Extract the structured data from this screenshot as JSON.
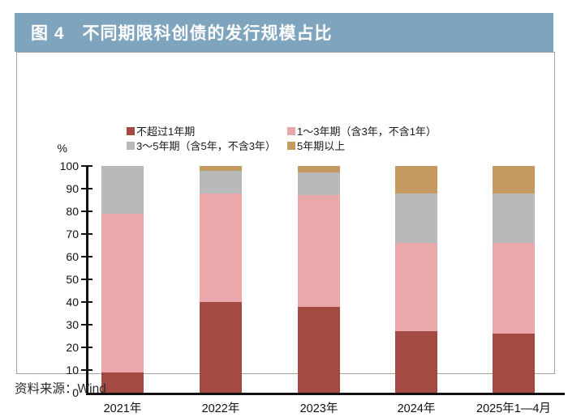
{
  "figure": {
    "title": "图 4　不同期限科创债的发行规模占比",
    "source": "资料来源：Wind"
  },
  "colors": {
    "header_bg": "#7fa4bd",
    "header_text": "#ffffff",
    "axis": "#111111",
    "panel_border": "#a3a3a3"
  },
  "chart_data": {
    "type": "bar",
    "stacked": true,
    "unit": "%",
    "title": "不同期限科创债的发行规模占比",
    "xlabel": "",
    "ylabel": "%",
    "ylim": [
      0,
      100
    ],
    "yticks": [
      0,
      10,
      20,
      30,
      40,
      50,
      60,
      70,
      80,
      90,
      100
    ],
    "grid": false,
    "legend_position": "top",
    "categories": [
      "2021年",
      "2022年",
      "2023年",
      "2024年",
      "2025年1—4月"
    ],
    "series": [
      {
        "name": "不超过1年期",
        "color": "#a34b42",
        "values": [
          9,
          40,
          38,
          27,
          26
        ]
      },
      {
        "name": "1～3年期（含3年，不含1年）",
        "color": "#eaa8aa",
        "values": [
          70,
          48,
          49,
          39,
          40
        ]
      },
      {
        "name": "3～5年期（含5年，不含3年）",
        "color": "#b7b9bb",
        "values": [
          21,
          10,
          10,
          22,
          22
        ]
      },
      {
        "name": "5年期以上",
        "color": "#c49a61",
        "values": [
          0,
          2,
          3,
          12,
          12
        ]
      }
    ]
  }
}
